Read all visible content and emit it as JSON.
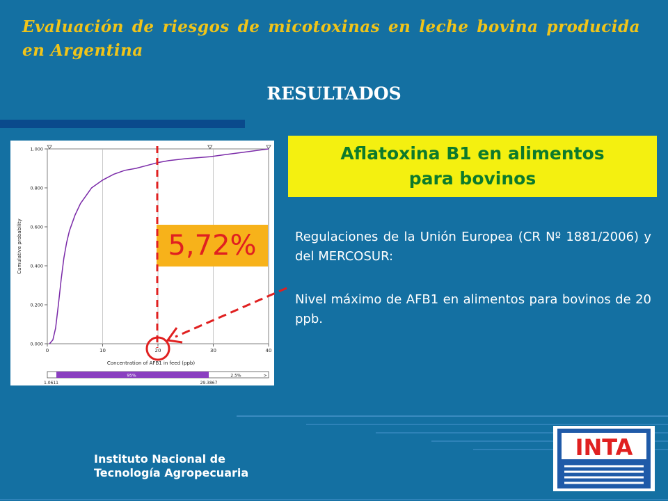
{
  "header": {
    "title": "Evaluación de riesgos de micotoxinas en leche bovina producida en Argentina"
  },
  "section": {
    "title": "RESULTADOS"
  },
  "chart_data": {
    "type": "line",
    "xlabel": "Concentration of AFB1 in feed (ppb)",
    "ylabel": "Cumulative probability",
    "xlim": [
      0,
      40
    ],
    "ylim": [
      0,
      1
    ],
    "x_ticks": [
      "0",
      "10",
      "20",
      "30",
      "40"
    ],
    "y_ticks": [
      "0.000",
      "0.200",
      "0.400",
      "0.600",
      "0.800",
      "1.000"
    ],
    "series": [
      {
        "color": "#7a2aa8",
        "points": [
          [
            0.4,
            0
          ],
          [
            1,
            0.02
          ],
          [
            1.5,
            0.08
          ],
          [
            2,
            0.2
          ],
          [
            2.5,
            0.33
          ],
          [
            3,
            0.44
          ],
          [
            3.5,
            0.52
          ],
          [
            4,
            0.58
          ],
          [
            5,
            0.66
          ],
          [
            6,
            0.72
          ],
          [
            7,
            0.76
          ],
          [
            8,
            0.8
          ],
          [
            10,
            0.84
          ],
          [
            12,
            0.87
          ],
          [
            14,
            0.89
          ],
          [
            16,
            0.9
          ],
          [
            18,
            0.915
          ],
          [
            20,
            0.93
          ],
          [
            22,
            0.94
          ],
          [
            25,
            0.95
          ],
          [
            29.4,
            0.96
          ],
          [
            32,
            0.97
          ],
          [
            36,
            0.985
          ],
          [
            40,
            1.0
          ]
        ]
      }
    ],
    "reference_line_x": 20,
    "interval_bar": {
      "left_value": "1.0611",
      "right_value": "29.3867",
      "middle_label": "95%",
      "right_label": "2.5%",
      "arrow_label": ">"
    }
  },
  "highlight": {
    "percent": "5,72%"
  },
  "callout": {
    "title": "Aflatoxina B1 en alimentos para bovinos"
  },
  "text": {
    "p1": "Regulaciones de la Unión Europea (CR Nº 1881/2006) y del MERCOSUR:",
    "p2": "Nivel máximo de AFB1 en alimentos para bovinos de 20 ppb."
  },
  "footer": {
    "org_line1": "Instituto Nacional de",
    "org_line2": "Tecnología Agropecuaria",
    "logo_text": "INTA"
  },
  "colors": {
    "background": "#1470a2",
    "title_yellow": "#f0c419",
    "callout_bg": "#f4f010",
    "callout_text": "#0c7a2c",
    "highlight_bg": "#f7b21a",
    "highlight_text": "#e02020",
    "guide_red": "#e02020"
  }
}
